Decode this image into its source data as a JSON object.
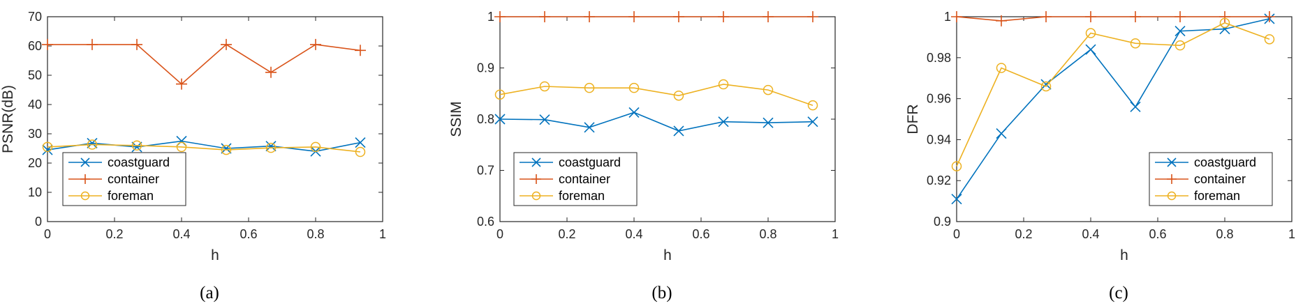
{
  "chart_data": [
    {
      "type": "line",
      "caption": "(a)",
      "xlabel": "h",
      "ylabel": "PSNR(dB)",
      "xlim": [
        0,
        1
      ],
      "ylim": [
        0,
        70
      ],
      "xticks": [
        0,
        0.2,
        0.4,
        0.6,
        0.8,
        1
      ],
      "xtick_labels": [
        "0",
        "0.2",
        "0.4",
        "0.6",
        "0.8",
        "1"
      ],
      "yticks": [
        0,
        10,
        20,
        30,
        40,
        50,
        60,
        70
      ],
      "ytick_labels": [
        "0",
        "10",
        "20",
        "30",
        "40",
        "50",
        "60",
        "70"
      ],
      "grid": false,
      "legend_position": "bottom-left",
      "x": [
        0,
        0.1333,
        0.2667,
        0.4,
        0.5333,
        0.6667,
        0.8,
        0.9333
      ],
      "series": [
        {
          "name": "coastguard",
          "marker": "x",
          "color": "#0072BD",
          "values": [
            24.5,
            26.8,
            25.5,
            27.5,
            25.0,
            25.8,
            24.0,
            27.0
          ]
        },
        {
          "name": "container",
          "marker": "+",
          "color": "#D95319",
          "values": [
            60.5,
            60.5,
            60.5,
            47.0,
            60.5,
            51.0,
            60.5,
            58.5
          ]
        },
        {
          "name": "foreman",
          "marker": "o",
          "color": "#EDB120",
          "values": [
            25.5,
            26.3,
            26.0,
            25.5,
            24.5,
            25.2,
            25.5,
            23.8
          ]
        }
      ]
    },
    {
      "type": "line",
      "caption": "(b)",
      "xlabel": "h",
      "ylabel": "SSIM",
      "xlim": [
        0,
        1
      ],
      "ylim": [
        0.6,
        1
      ],
      "xticks": [
        0,
        0.2,
        0.4,
        0.6,
        0.8,
        1
      ],
      "xtick_labels": [
        "0",
        "0.2",
        "0.4",
        "0.6",
        "0.8",
        "1"
      ],
      "yticks": [
        0.6,
        0.7,
        0.8,
        0.9,
        1
      ],
      "ytick_labels": [
        "0.6",
        "0.7",
        "0.8",
        "0.9",
        "1"
      ],
      "grid": false,
      "legend_position": "bottom-left",
      "x": [
        0,
        0.1333,
        0.2667,
        0.4,
        0.5333,
        0.6667,
        0.8,
        0.9333
      ],
      "series": [
        {
          "name": "coastguard",
          "marker": "x",
          "color": "#0072BD",
          "values": [
            0.8,
            0.799,
            0.784,
            0.813,
            0.777,
            0.795,
            0.793,
            0.795
          ]
        },
        {
          "name": "container",
          "marker": "+",
          "color": "#D95319",
          "values": [
            1.0,
            1.0,
            1.0,
            1.0,
            1.0,
            1.0,
            1.0,
            1.0
          ]
        },
        {
          "name": "foreman",
          "marker": "o",
          "color": "#EDB120",
          "values": [
            0.848,
            0.864,
            0.861,
            0.861,
            0.846,
            0.868,
            0.857,
            0.827
          ]
        }
      ]
    },
    {
      "type": "line",
      "caption": "(c)",
      "xlabel": "h",
      "ylabel": "DFR",
      "xlim": [
        0,
        1
      ],
      "ylim": [
        0.9,
        1
      ],
      "xticks": [
        0,
        0.2,
        0.4,
        0.6,
        0.8,
        1
      ],
      "xtick_labels": [
        "0",
        "0.2",
        "0.4",
        "0.6",
        "0.8",
        "1"
      ],
      "yticks": [
        0.9,
        0.92,
        0.94,
        0.96,
        0.98,
        1
      ],
      "ytick_labels": [
        "0.9",
        "0.92",
        "0.94",
        "0.96",
        "0.98",
        "1"
      ],
      "grid": false,
      "legend_position": "bottom-right",
      "x": [
        0,
        0.1333,
        0.2667,
        0.4,
        0.5333,
        0.6667,
        0.8,
        0.9333
      ],
      "series": [
        {
          "name": "coastguard",
          "marker": "x",
          "color": "#0072BD",
          "values": [
            0.911,
            0.943,
            0.967,
            0.984,
            0.956,
            0.993,
            0.994,
            0.999
          ]
        },
        {
          "name": "container",
          "marker": "+",
          "color": "#D95319",
          "values": [
            1.0,
            0.998,
            1.0,
            1.0,
            1.0,
            1.0,
            1.0,
            1.0
          ]
        },
        {
          "name": "foreman",
          "marker": "o",
          "color": "#EDB120",
          "values": [
            0.927,
            0.975,
            0.966,
            0.992,
            0.987,
            0.986,
            0.997,
            0.989
          ]
        }
      ]
    }
  ]
}
